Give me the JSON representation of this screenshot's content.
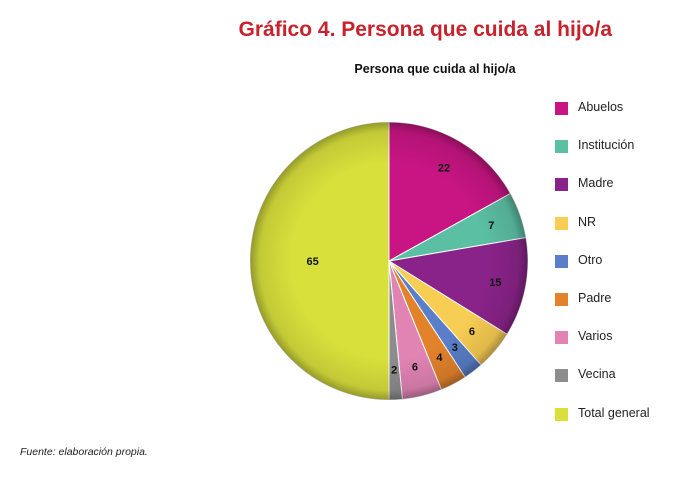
{
  "figure": {
    "title": "Gráfico 4. Persona que cuida al hijo/a",
    "source": "Fuente: elaboración propia."
  },
  "chart_data": {
    "type": "pie",
    "title": "Persona que cuida al hijo/a",
    "legend_position": "right",
    "slices": [
      {
        "label": "Abuelos",
        "value": 22,
        "color": "#c81583"
      },
      {
        "label": "Institución",
        "value": 7,
        "color": "#5bbfa3"
      },
      {
        "label": "Madre",
        "value": 15,
        "color": "#8a2389"
      },
      {
        "label": "NR",
        "value": 6,
        "color": "#f8cd53"
      },
      {
        "label": "Otro",
        "value": 3,
        "color": "#5a7fc8"
      },
      {
        "label": "Padre",
        "value": 4,
        "color": "#e2822b"
      },
      {
        "label": "Varios",
        "value": 6,
        "color": "#e184b4"
      },
      {
        "label": "Vecina",
        "value": 2,
        "color": "#8d8d8d"
      },
      {
        "label": "Total general",
        "value": 65,
        "color": "#d8e03c"
      }
    ]
  }
}
